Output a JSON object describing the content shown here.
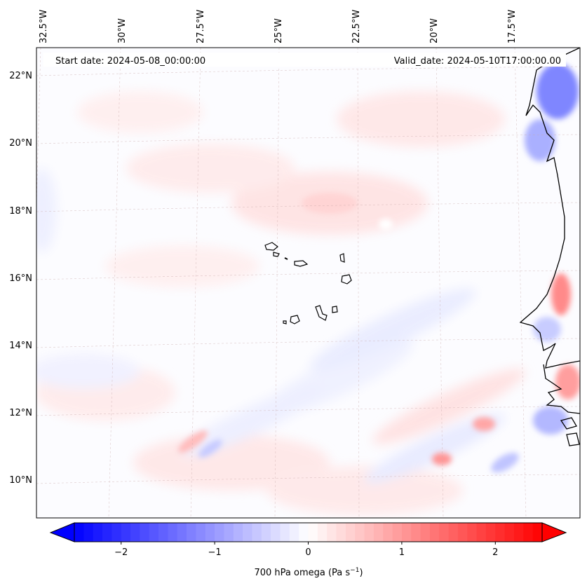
{
  "header": {
    "start_date": "Start date: 2024-05-08_00:00:00",
    "valid_date": "Valid_date: 2024-05-10T17:00:00.00"
  },
  "lon_labels": [
    "32.5°W",
    "30°W",
    "27.5°W",
    "25°W",
    "22.5°W",
    "20°W",
    "17.5°W"
  ],
  "lat_labels": [
    "22°N",
    "20°N",
    "18°N",
    "16°N",
    "14°N",
    "12°N",
    "10°N"
  ],
  "colorbar": {
    "label": "700 hPa omega (Pa s",
    "label_sup": "−1",
    "label_end": ")",
    "ticks": [
      "−2",
      "−1",
      "0",
      "1",
      "2"
    ],
    "tick_values": [
      -2,
      -1,
      0,
      1,
      2
    ],
    "range": [
      -2.5,
      2.5
    ],
    "cmap": "bwr",
    "extend": "both"
  },
  "colors": {
    "neg": "#0000ff",
    "zero": "#ffffff",
    "pos": "#ff0000",
    "coast": "#000000"
  }
}
